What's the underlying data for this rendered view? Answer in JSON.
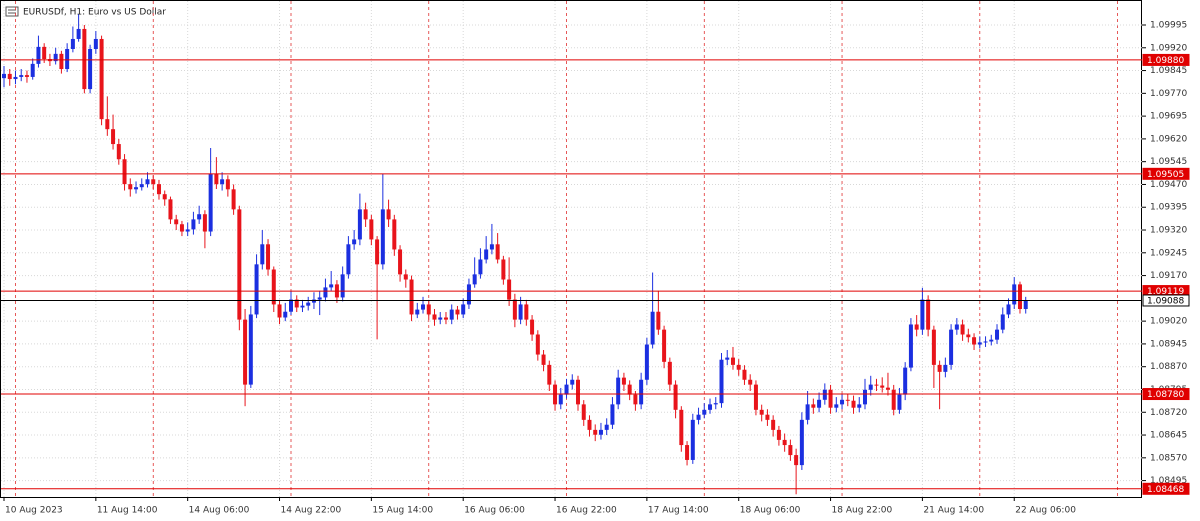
{
  "chart_data": {
    "type": "candlestick",
    "title": "EURUSDf, H1: Euro vs US Dollar",
    "categories": [
      "10 Aug 2023",
      null,
      null,
      null,
      null,
      null,
      null,
      null,
      null,
      null,
      null,
      null,
      null,
      null,
      null,
      null,
      "11 Aug 14:00",
      null,
      null,
      null,
      null,
      null,
      null,
      null,
      null,
      null,
      null,
      null,
      null,
      null,
      null,
      null,
      "14 Aug 06:00",
      null,
      null,
      null,
      null,
      null,
      null,
      null,
      null,
      null,
      null,
      null,
      null,
      null,
      null,
      null,
      "14 Aug 22:00",
      null,
      null,
      null,
      null,
      null,
      null,
      null,
      null,
      null,
      null,
      null,
      null,
      null,
      null,
      null,
      "15 Aug 14:00",
      null,
      null,
      null,
      null,
      null,
      null,
      null,
      null,
      null,
      null,
      null,
      null,
      null,
      null,
      null,
      "16 Aug 06:00",
      null,
      null,
      null,
      null,
      null,
      null,
      null,
      null,
      null,
      null,
      null,
      null,
      null,
      null,
      null,
      "16 Aug 22:00",
      null,
      null,
      null,
      null,
      null,
      null,
      null,
      null,
      null,
      null,
      null,
      null,
      null,
      null,
      null,
      "17 Aug 14:00",
      null,
      null,
      null,
      null,
      null,
      null,
      null,
      null,
      null,
      null,
      null,
      null,
      null,
      null,
      null,
      "18 Aug 06:00",
      null,
      null,
      null,
      null,
      null,
      null,
      null,
      null,
      null,
      null,
      null,
      null,
      null,
      null,
      null,
      "18 Aug 22:00",
      null,
      null,
      null,
      null,
      null,
      null,
      null,
      null,
      null,
      null,
      null,
      null,
      null,
      null,
      null,
      "21 Aug 14:00",
      null,
      null,
      null,
      null,
      null,
      null,
      null,
      null,
      null,
      null,
      null,
      null,
      null,
      null,
      null,
      "22 Aug 06:00",
      null,
      null
    ],
    "open": [
      1.0982,
      1.09834,
      1.09817,
      1.09824,
      1.0983,
      1.09824,
      1.09867,
      1.09923,
      1.09883,
      1.09876,
      1.099,
      1.0985,
      1.09916,
      1.09949,
      1.09982,
      1.09784,
      1.09916,
      1.09949,
      1.09685,
      1.09652,
      1.09603,
      1.09553,
      1.09471,
      1.09454,
      1.09461,
      1.09471,
      1.09487,
      1.09471,
      1.09438,
      1.09421,
      1.09355,
      1.09339,
      1.09315,
      1.09322,
      1.09355,
      1.09372,
      1.09315,
      1.09504,
      1.09471,
      1.09487,
      1.09454,
      1.09388,
      1.09025,
      1.08811,
      1.09042,
      1.09207,
      1.09273,
      1.0919,
      1.09075,
      1.09032,
      1.09051,
      1.09091,
      1.09065,
      1.09071,
      1.09081,
      1.09091,
      1.09098,
      1.09131,
      1.09141,
      1.09098,
      1.09174,
      1.09273,
      1.09289,
      1.09388,
      1.09355,
      1.09289,
      1.09207,
      1.09388,
      1.09355,
      1.09256,
      1.09174,
      1.09157,
      1.09042,
      1.09058,
      1.09075,
      1.09042,
      1.09025,
      1.09032,
      1.09025,
      1.09058,
      1.09042,
      1.09075,
      1.09141,
      1.09174,
      1.09223,
      1.09256,
      1.09273,
      1.09223,
      1.09157,
      1.09091,
      1.09025,
      1.09075,
      1.09025,
      1.08976,
      1.0891,
      1.08876,
      1.08811,
      1.08746,
      1.08778,
      1.08811,
      1.08827,
      1.08746,
      1.08695,
      1.08662,
      1.08646,
      1.08662,
      1.08679,
      1.08746,
      1.08834,
      1.08811,
      1.08778,
      1.08746,
      1.08827,
      1.08943,
      1.09051,
      1.08992,
      1.08886,
      1.08811,
      1.08728,
      1.08612,
      1.08563,
      1.08695,
      1.08712,
      1.08728,
      1.08746,
      1.0875,
      1.08893,
      1.089,
      1.08876,
      1.0886,
      1.08827,
      1.08811,
      1.08728,
      1.08712,
      1.08695,
      1.08662,
      1.08629,
      1.08612,
      1.08579,
      1.08546,
      1.08695,
      1.08746,
      1.08735,
      1.08761,
      1.08794,
      1.08735,
      1.08746,
      1.08761,
      1.08758,
      1.08735,
      1.08746,
      1.08794,
      1.08811,
      1.08808,
      1.08801,
      1.08794,
      1.08728,
      1.08778,
      1.08867,
      1.09009,
      1.08992,
      1.09091,
      1.08992,
      1.08876,
      1.08853,
      1.08876,
      1.08992,
      1.09009,
      1.08976,
      1.08967,
      1.08943,
      1.0895,
      1.08953,
      1.08959,
      1.08992,
      1.09042,
      1.09075,
      1.09141,
      1.0906
    ],
    "high": [
      1.0986,
      1.0985,
      1.09845,
      1.0985,
      1.09845,
      1.09885,
      1.0996,
      1.09935,
      1.099,
      1.0992,
      1.0991,
      1.09935,
      1.0999,
      1.1003,
      1.09995,
      1.0993,
      1.09975,
      1.0996,
      1.0976,
      1.097,
      1.0962,
      1.0957,
      1.0949,
      1.0948,
      1.0949,
      1.0951,
      1.095,
      1.09485,
      1.0945,
      1.0943,
      1.0937,
      1.0935,
      1.09345,
      1.0938,
      1.094,
      1.09385,
      1.0959,
      1.0956,
      1.0951,
      1.095,
      1.0947,
      1.094,
      1.0906,
      1.0907,
      1.0924,
      1.0932,
      1.0929,
      1.092,
      1.0909,
      1.0908,
      1.0912,
      1.09105,
      1.0909,
      1.091,
      1.09115,
      1.0912,
      1.0916,
      1.09185,
      1.09155,
      1.092,
      1.093,
      1.0932,
      1.0944,
      1.0941,
      1.0937,
      1.093,
      1.09505,
      1.0942,
      1.0937,
      1.0927,
      1.0919,
      1.0917,
      1.0908,
      1.091,
      1.0909,
      1.0906,
      1.0905,
      1.0905,
      1.09075,
      1.0907,
      1.09095,
      1.0916,
      1.0923,
      1.0926,
      1.093,
      1.0934,
      1.0931,
      1.09235,
      1.0923,
      1.0911,
      1.091,
      1.0909,
      1.0904,
      1.0899,
      1.08925,
      1.0889,
      1.08825,
      1.088,
      1.0883,
      1.08845,
      1.0884,
      1.0876,
      1.0871,
      1.0868,
      1.08685,
      1.087,
      1.0877,
      1.0886,
      1.0885,
      1.08825,
      1.0879,
      1.0885,
      1.08965,
      1.0918,
      1.0912,
      1.09005,
      1.089,
      1.08825,
      1.0874,
      1.08625,
      1.08715,
      1.08735,
      1.0875,
      1.08765,
      1.0877,
      1.08915,
      1.08925,
      1.08935,
      1.08895,
      1.08875,
      1.08845,
      1.08825,
      1.08745,
      1.0873,
      1.0871,
      1.08675,
      1.0865,
      1.0863,
      1.086,
      1.0872,
      1.0879,
      1.08765,
      1.08785,
      1.08815,
      1.0881,
      1.0877,
      1.0878,
      1.0878,
      1.08775,
      1.0877,
      1.0883,
      1.0884,
      1.0883,
      1.08835,
      1.0885,
      1.0881,
      1.088,
      1.08885,
      1.0903,
      1.0904,
      1.0913,
      1.09105,
      1.09005,
      1.0889,
      1.089,
      1.0901,
      1.0903,
      1.09025,
      1.08995,
      1.0898,
      1.0897,
      1.0897,
      1.08975,
      1.0901,
      1.09065,
      1.09095,
      1.09165,
      1.0915,
      1.091
    ],
    "low": [
      1.0979,
      1.09795,
      1.098,
      1.0981,
      1.09805,
      1.09815,
      1.09855,
      1.0987,
      1.0986,
      1.09865,
      1.09835,
      1.0984,
      1.09905,
      1.0994,
      1.0977,
      1.0977,
      1.099,
      1.09665,
      1.0963,
      1.09585,
      1.09535,
      1.0945,
      1.0943,
      1.0944,
      1.0945,
      1.0946,
      1.09455,
      1.0942,
      1.094,
      1.0934,
      1.0932,
      1.093,
      1.093,
      1.09305,
      1.0934,
      1.0926,
      1.093,
      1.09455,
      1.0945,
      1.0943,
      1.0937,
      1.0899,
      1.0874,
      1.088,
      1.0903,
      1.0919,
      1.0917,
      1.0905,
      1.0901,
      1.0902,
      1.0904,
      1.0905,
      1.0905,
      1.09055,
      1.0906,
      1.0904,
      1.09085,
      1.0912,
      1.0908,
      1.09085,
      1.0916,
      1.09255,
      1.0927,
      1.0933,
      1.0927,
      1.0896,
      1.0919,
      1.0933,
      1.09235,
      1.0915,
      1.0913,
      1.0902,
      1.0903,
      1.09045,
      1.09025,
      1.09005,
      1.0901,
      1.0901,
      1.0901,
      1.09025,
      1.0903,
      1.0906,
      1.0913,
      1.0916,
      1.0921,
      1.0924,
      1.0921,
      1.0914,
      1.0907,
      1.09,
      1.0901,
      1.09005,
      1.08955,
      1.0889,
      1.08855,
      1.0879,
      1.08725,
      1.0873,
      1.08765,
      1.08795,
      1.08725,
      1.08675,
      1.0864,
      1.08625,
      1.0863,
      1.08645,
      1.08665,
      1.0873,
      1.0879,
      1.0876,
      1.08725,
      1.0873,
      1.0881,
      1.0893,
      1.08975,
      1.08865,
      1.0879,
      1.087,
      1.0859,
      1.08545,
      1.0855,
      1.0868,
      1.087,
      1.08715,
      1.0873,
      1.08735,
      1.08875,
      1.0886,
      1.0884,
      1.0881,
      1.0879,
      1.0871,
      1.0869,
      1.08675,
      1.0864,
      1.0861,
      1.0859,
      1.0856,
      1.0845,
      1.0853,
      1.0868,
      1.08715,
      1.0872,
      1.08745,
      1.08715,
      1.0872,
      1.0873,
      1.0874,
      1.08715,
      1.0872,
      1.0873,
      1.08775,
      1.0879,
      1.08785,
      1.08775,
      1.0871,
      1.08715,
      1.0876,
      1.08855,
      1.0897,
      1.08975,
      1.0897,
      1.088,
      1.0873,
      1.08835,
      1.0886,
      1.08975,
      1.08955,
      1.0895,
      1.08925,
      1.0893,
      1.08935,
      1.0894,
      1.08945,
      1.0898,
      1.0903,
      1.0906,
      1.09045,
      1.09045
    ],
    "close": [
      1.09834,
      1.09817,
      1.09824,
      1.0983,
      1.09824,
      1.09867,
      1.09923,
      1.09883,
      1.09876,
      1.099,
      1.0985,
      1.09916,
      1.09949,
      1.09982,
      1.09784,
      1.09916,
      1.09949,
      1.09685,
      1.09652,
      1.09603,
      1.09553,
      1.09471,
      1.09454,
      1.09461,
      1.09471,
      1.09487,
      1.09471,
      1.09438,
      1.09421,
      1.09355,
      1.09339,
      1.09315,
      1.09322,
      1.09355,
      1.09372,
      1.09315,
      1.09504,
      1.09471,
      1.09487,
      1.09454,
      1.09388,
      1.09025,
      1.08811,
      1.09042,
      1.09207,
      1.09273,
      1.0919,
      1.09075,
      1.09032,
      1.09051,
      1.09091,
      1.09065,
      1.09071,
      1.09081,
      1.09091,
      1.09098,
      1.09131,
      1.09141,
      1.09098,
      1.09174,
      1.09273,
      1.09289,
      1.09388,
      1.09355,
      1.09289,
      1.09207,
      1.09388,
      1.09355,
      1.09256,
      1.09174,
      1.09157,
      1.09042,
      1.09058,
      1.09075,
      1.09042,
      1.09025,
      1.09032,
      1.09025,
      1.09058,
      1.09042,
      1.09075,
      1.09141,
      1.09174,
      1.09223,
      1.09256,
      1.09273,
      1.09223,
      1.09157,
      1.09091,
      1.09025,
      1.09075,
      1.09025,
      1.08976,
      1.0891,
      1.08876,
      1.08811,
      1.08746,
      1.08778,
      1.08811,
      1.08827,
      1.08746,
      1.08695,
      1.08662,
      1.08646,
      1.08662,
      1.08679,
      1.08746,
      1.08834,
      1.08811,
      1.08778,
      1.08746,
      1.08827,
      1.08943,
      1.09051,
      1.08992,
      1.08886,
      1.08811,
      1.08728,
      1.08612,
      1.08563,
      1.08695,
      1.08712,
      1.08728,
      1.08746,
      1.0875,
      1.08893,
      1.089,
      1.08876,
      1.0886,
      1.08827,
      1.08811,
      1.08728,
      1.08712,
      1.08695,
      1.08662,
      1.08629,
      1.08612,
      1.08579,
      1.08546,
      1.08695,
      1.08746,
      1.08735,
      1.08761,
      1.08794,
      1.08735,
      1.08746,
      1.08761,
      1.08758,
      1.08735,
      1.08746,
      1.08794,
      1.08811,
      1.08808,
      1.08801,
      1.08794,
      1.08728,
      1.08778,
      1.08867,
      1.09009,
      1.08992,
      1.09091,
      1.08992,
      1.08876,
      1.08853,
      1.08876,
      1.08992,
      1.09009,
      1.08976,
      1.08967,
      1.08943,
      1.0895,
      1.08953,
      1.08959,
      1.08992,
      1.09042,
      1.09075,
      1.09141,
      1.0906,
      1.09088
    ],
    "up_color": "#1b2fe0",
    "down_color": "#e8141b",
    "ylim": [
      1.08441,
      1.10074
    ],
    "yticks": [
      1.09995,
      {
        "value": 1.0992,
        "label": "1.09920"
      },
      1.09845,
      {
        "value": 1.0977,
        "label": "1.09770"
      },
      1.09695,
      {
        "value": 1.0962,
        "label": "1.09620"
      },
      1.09545,
      {
        "value": 1.0947,
        "label": "1.09470"
      },
      1.09395,
      {
        "value": 1.0932,
        "label": "1.09320"
      },
      1.09245,
      {
        "value": 1.0917,
        "label": "1.09170"
      },
      {
        "value": 1.0902,
        "label": "1.09020"
      },
      1.08945,
      {
        "value": 1.0887,
        "label": "1.08870"
      },
      1.08795,
      {
        "value": 1.0872,
        "label": "1.08720"
      },
      1.08645,
      {
        "value": 1.0857,
        "label": "1.08570"
      },
      1.08495
    ],
    "grid": true,
    "levels": [
      {
        "value": 1.0988,
        "label": "1.09880"
      },
      1.09505,
      1.09119,
      {
        "value": 1.0878,
        "label": "1.08780"
      },
      1.08468
    ],
    "level_color": "#e00000",
    "bid": 1.09088,
    "bid_color": "#000000"
  }
}
